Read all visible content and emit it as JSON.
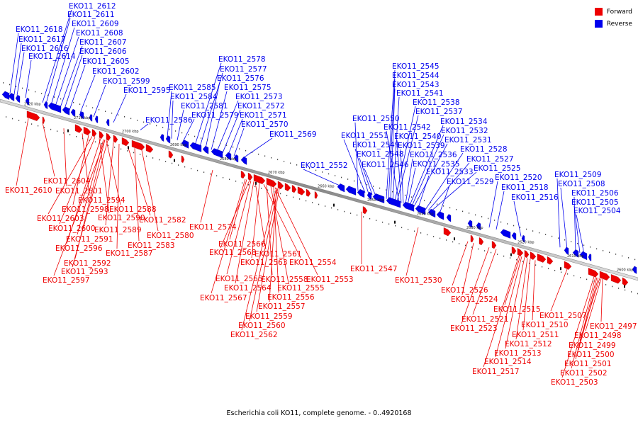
{
  "caption": "Escherichia coli KO11, complete genome. - 0..4920168",
  "legend": [
    {
      "label": "Forward",
      "color": "#ee0000"
    },
    {
      "label": "Reverse",
      "color": "#0000ee"
    }
  ],
  "colors": {
    "forward": "#ee0000",
    "reverse": "#0000ee",
    "axis": "#888888"
  },
  "ticks": [
    "2720 kbp",
    "2710 kbp",
    "2700 kbp",
    "2690 kbp",
    "2680 kbp",
    "2670 kbp",
    "2660 kbp",
    "2650 kbp",
    "2640 kbp",
    "2630 kbp",
    "2620 kbp",
    "2610 kbp",
    "2600 kbp"
  ],
  "reverse_labels": [
    "EKO11_2612",
    "EKO11_2611",
    "EKO11_2609",
    "EKO11_2618",
    "EKO11_2608",
    "EKO11_2617",
    "EKO11_2607",
    "EKO11_2616",
    "EKO11_2606",
    "EKO11_2614",
    "EKO11_2605",
    "EKO11_2602",
    "EKO11_2599",
    "EKO11_2595",
    "EKO11_2586",
    "EKO11_2585",
    "EKO11_2584",
    "EKO11_2581",
    "EKO11_2579",
    "EKO11_2578",
    "EKO11_2577",
    "EKO11_2576",
    "EKO11_2575",
    "EKO11_2573",
    "EKO11_2572",
    "EKO11_2571",
    "EKO11_2570",
    "EKO11_2569",
    "EKO11_2552",
    "EKO11_2550",
    "EKO11_2551",
    "EKO11_2549",
    "EKO11_2548",
    "EKO11_2546",
    "EKO11_2545",
    "EKO11_2544",
    "EKO11_2543",
    "EKO11_2541",
    "EKO11_2538",
    "EKO11_2537",
    "EKO11_2542",
    "EKO11_2540",
    "EKO11_2539",
    "EKO11_2536",
    "EKO11_2535",
    "EKO11_2534",
    "EKO11_2532",
    "EKO11_2531",
    "EKO11_2528",
    "EKO11_2527",
    "EKO11_2533",
    "EKO11_2525",
    "EKO11_2529",
    "EKO11_2520",
    "EKO11_2518",
    "EKO11_2516",
    "EKO11_2509",
    "EKO11_2508",
    "EKO11_2506",
    "EKO11_2505",
    "EKO11_2504"
  ],
  "forward_labels": [
    "EKO11_2604",
    "EKO11_2610",
    "EKO11_2601",
    "EKO11_2594",
    "EKO11_2598",
    "EKO11_2603",
    "EKO11_2590",
    "EKO11_2588",
    "EKO11_2600",
    "EKO11_2591",
    "EKO11_2589",
    "EKO11_2582",
    "EKO11_2596",
    "EKO11_2587",
    "EKO11_2583",
    "EKO11_2580",
    "EKO11_2592",
    "EKO11_2593",
    "EKO11_2597",
    "EKO11_2574",
    "EKO11_2566",
    "EKO11_2568",
    "EKO11_2561",
    "EKO11_2563",
    "EKO11_2554",
    "EKO11_2565",
    "EKO11_2558",
    "EKO11_2553",
    "EKO11_2564",
    "EKO11_2555",
    "EKO11_2567",
    "EKO11_2556",
    "EKO11_2557",
    "EKO11_2559",
    "EKO11_2560",
    "EKO11_2562",
    "EKO11_2547",
    "EKO11_2530",
    "EKO11_2526",
    "EKO11_2524",
    "EKO11_2515",
    "EKO11_2521",
    "EKO11_2507",
    "EKO11_2510",
    "EKO11_2523",
    "EKO11_2511",
    "EKO11_2497",
    "EKO11_2498",
    "EKO11_2512",
    "EKO11_2499",
    "EKO11_2513",
    "EKO11_2500",
    "EKO11_2514",
    "EKO11_2501",
    "EKO11_2517",
    "EKO11_2502",
    "EKO11_2503"
  ]
}
